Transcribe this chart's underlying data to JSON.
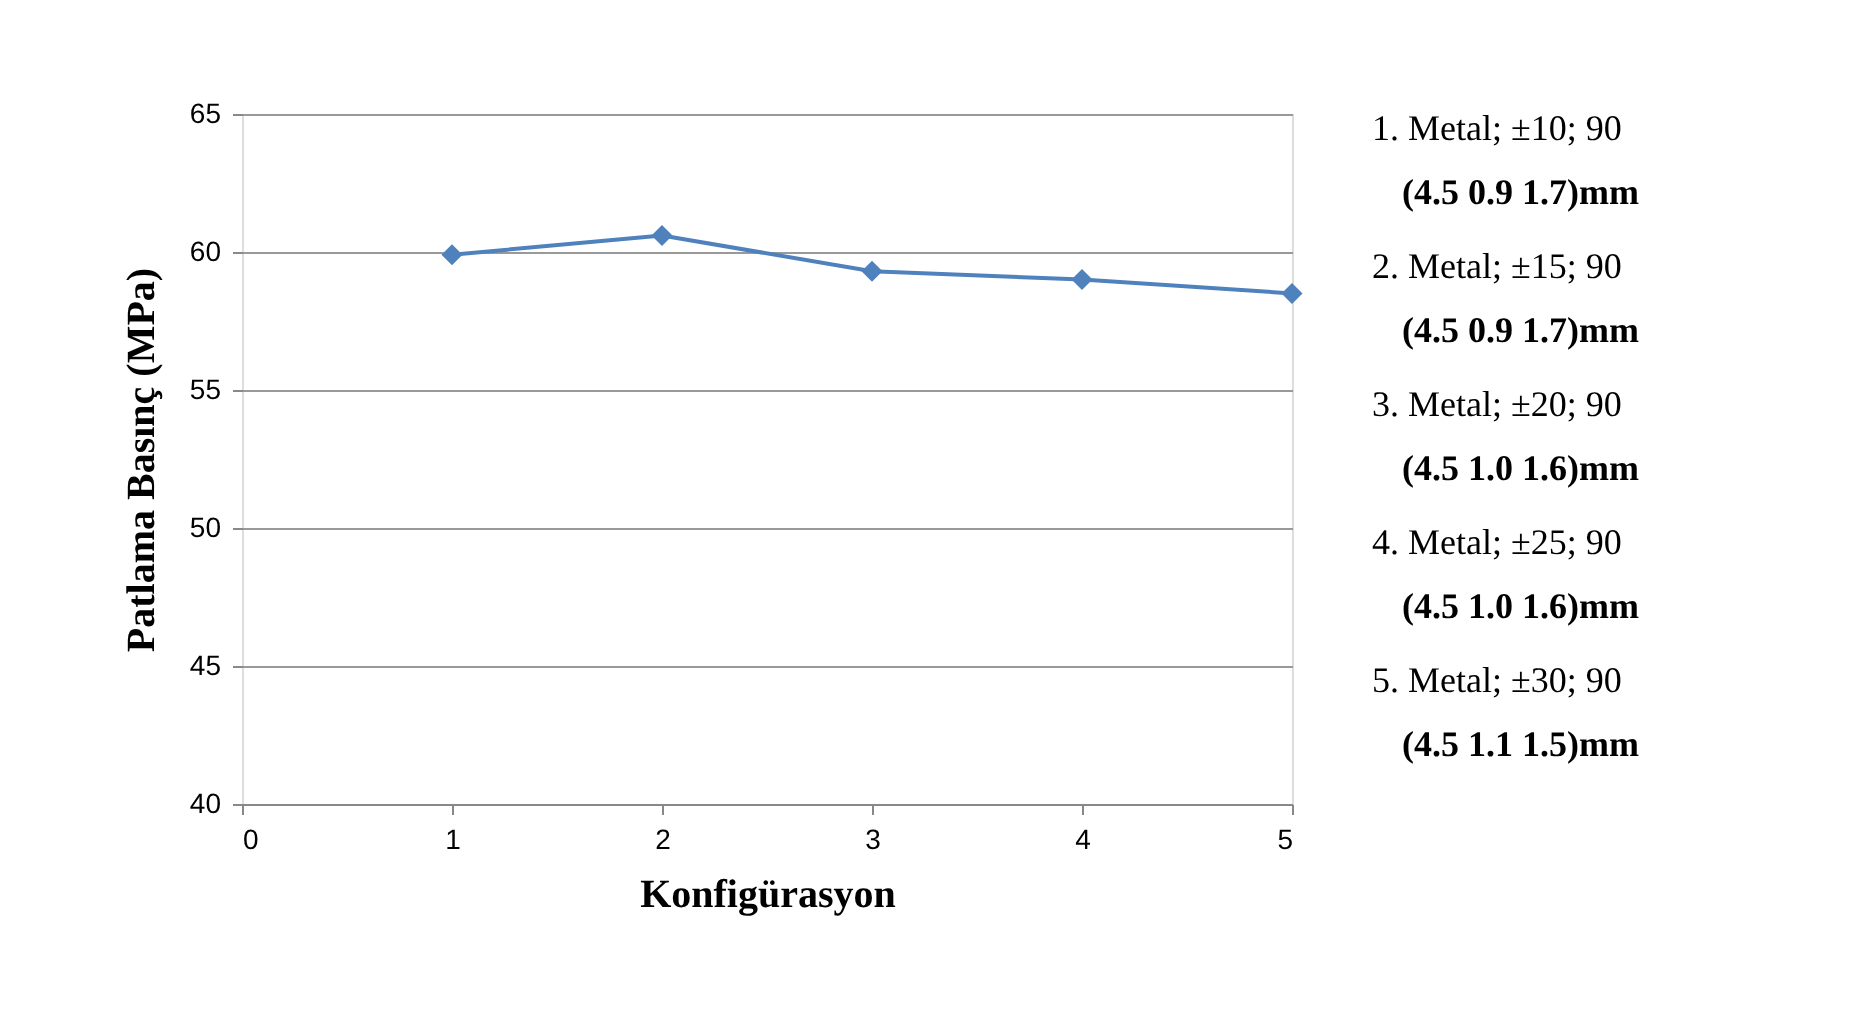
{
  "chart_data": {
    "type": "line",
    "xlabel": "Konfigürasyon",
    "ylabel": "Patlama Basınç (MPa)",
    "x": [
      1,
      2,
      3,
      4,
      5
    ],
    "series": [
      {
        "color": "#4f81bd",
        "values": [
          59.9,
          60.6,
          59.3,
          59.0,
          58.5
        ]
      }
    ],
    "xlim": [
      0,
      5
    ],
    "xticks": [
      0,
      1,
      2,
      3,
      4,
      5
    ],
    "ylim": [
      40,
      65
    ],
    "yticks": [
      40,
      45,
      50,
      55,
      60,
      65
    ],
    "grid": "y",
    "marker": "diamond",
    "line_style": "solid",
    "annotations": [
      "1. Metal; ±10; 90",
      "(4.5  0.9  1.7)mm",
      "2. Metal; ±15; 90",
      "(4.5  0.9  1.7)mm",
      "3. Metal; ±20; 90",
      "(4.5  1.0  1.6)mm",
      "4. Metal; ±25; 90",
      "(4.5  1.0  1.6)mm",
      "5. Metal; ±30; 90",
      "(4.5  1.1  1.5)mm"
    ]
  }
}
